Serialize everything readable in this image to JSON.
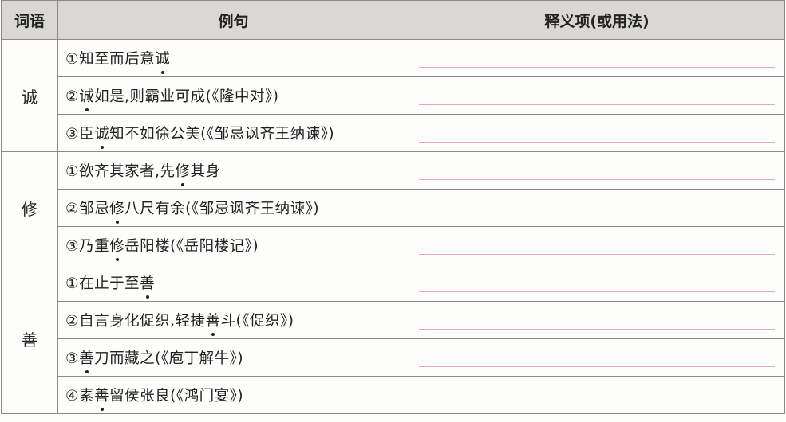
{
  "headers": [
    "词语",
    "例句",
    "释义项(或用法)"
  ],
  "groups": [
    {
      "word": "诚",
      "examples": [
        {
          "pre": "①知至而后意",
          "key": "诚",
          "post": ""
        },
        {
          "pre": "②",
          "key": "诚",
          "post": "如是,则霸业可成(《隆中对》)"
        },
        {
          "pre": "③臣",
          "key": "诚",
          "post": "知不如徐公美(《邹忌讽齐王纳谏》)"
        }
      ]
    },
    {
      "word": "修",
      "examples": [
        {
          "pre": "①欲齐其家者,先",
          "key": "修",
          "post": "其身"
        },
        {
          "pre": "②邹忌",
          "key": "修",
          "post": "八尺有余(《邹忌讽齐王纳谏》)"
        },
        {
          "pre": "③乃重",
          "key": "修",
          "post": "岳阳楼(《岳阳楼记》)"
        }
      ]
    },
    {
      "word": "善",
      "examples": [
        {
          "pre": "①在止于至",
          "key": "善",
          "post": ""
        },
        {
          "pre": "②自言身化促织,轻捷",
          "key": "善",
          "post": "斗(《促织》)"
        },
        {
          "pre": "③",
          "key": "善",
          "post": "刀而藏之(《庖丁解牛》)"
        },
        {
          "pre": "④素",
          "key": "善",
          "post": "留侯张良(《鸿门宴》)"
        }
      ]
    }
  ]
}
